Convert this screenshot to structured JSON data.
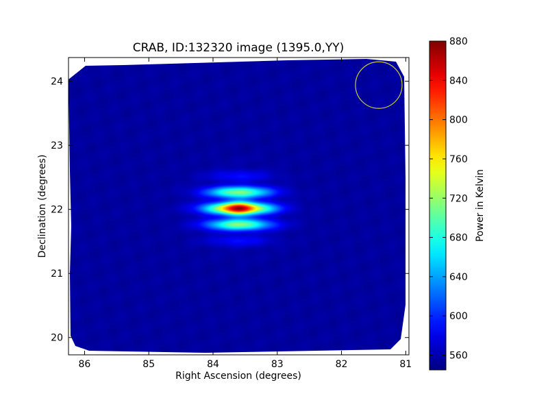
{
  "chart_data": {
    "type": "heatmap",
    "title": "CRAB, ID:132320 image (1395.0,YY)",
    "xlabel": "Right Ascension (degrees)",
    "ylabel": "Declination (degrees)",
    "xlim": [
      86.25,
      80.95
    ],
    "ylim": [
      19.73,
      24.37
    ],
    "xticks": [
      86,
      85,
      84,
      83,
      82,
      81
    ],
    "yticks": [
      20,
      21,
      22,
      23,
      24
    ],
    "colorbar": {
      "label": "Power in Kelvin",
      "range": [
        545,
        880
      ],
      "ticks": [
        560,
        600,
        640,
        680,
        720,
        760,
        800,
        840,
        880
      ],
      "colormap": "jet"
    },
    "background_level": 555,
    "source": {
      "ra": 83.6,
      "dec": 22.02,
      "peak": 880,
      "fringe_period_dec": 0.27
    },
    "beam_marker": {
      "ra": 81.42,
      "dec": 23.94,
      "color": "#cccc33"
    },
    "colors": {
      "nodata": "#ffffff",
      "frame": "#000000"
    }
  }
}
